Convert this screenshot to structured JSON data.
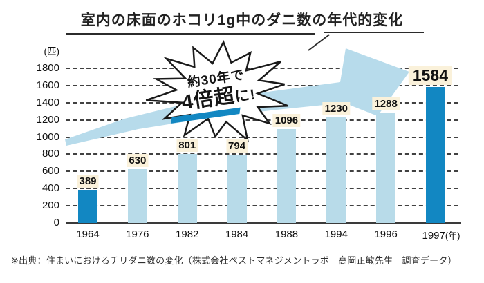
{
  "title": "室内の床面のホコリ1g中のダニ数の年代的変化",
  "callout": {
    "line1": "約30年で",
    "line2_big": "4倍超",
    "line2_small": "に!"
  },
  "footer": "※出典：住まいにおけるチリダニ数の変化（株式会社ペストマネジメントラボ　高岡正敏先生　調査データ）",
  "colors": {
    "bar_light": "#b8dbe9",
    "bar_dark": "#1287c2",
    "arrow": "#b7dbeb",
    "value_label_bg": "#faf1da",
    "callout_underline": "#1287c2",
    "gridline": "#414141",
    "text": "#1a1a1a"
  },
  "chart_data": {
    "type": "bar",
    "title": "室内の床面のホコリ1g中のダニ数の年代的変化",
    "categories": [
      "1964",
      "1976",
      "1982",
      "1984",
      "1988",
      "1994",
      "1996",
      "1997"
    ],
    "values": [
      389,
      630,
      801,
      794,
      1096,
      1230,
      1288,
      1584
    ],
    "highlight_indices": [
      0,
      7
    ],
    "ylabel": "(匹)",
    "xlabel": "(年)",
    "ylim": [
      0,
      1800
    ],
    "ytick_step": 200,
    "grid": "horizontal-dashed",
    "legend": "none",
    "annotation": "約30年で4倍超に!"
  }
}
